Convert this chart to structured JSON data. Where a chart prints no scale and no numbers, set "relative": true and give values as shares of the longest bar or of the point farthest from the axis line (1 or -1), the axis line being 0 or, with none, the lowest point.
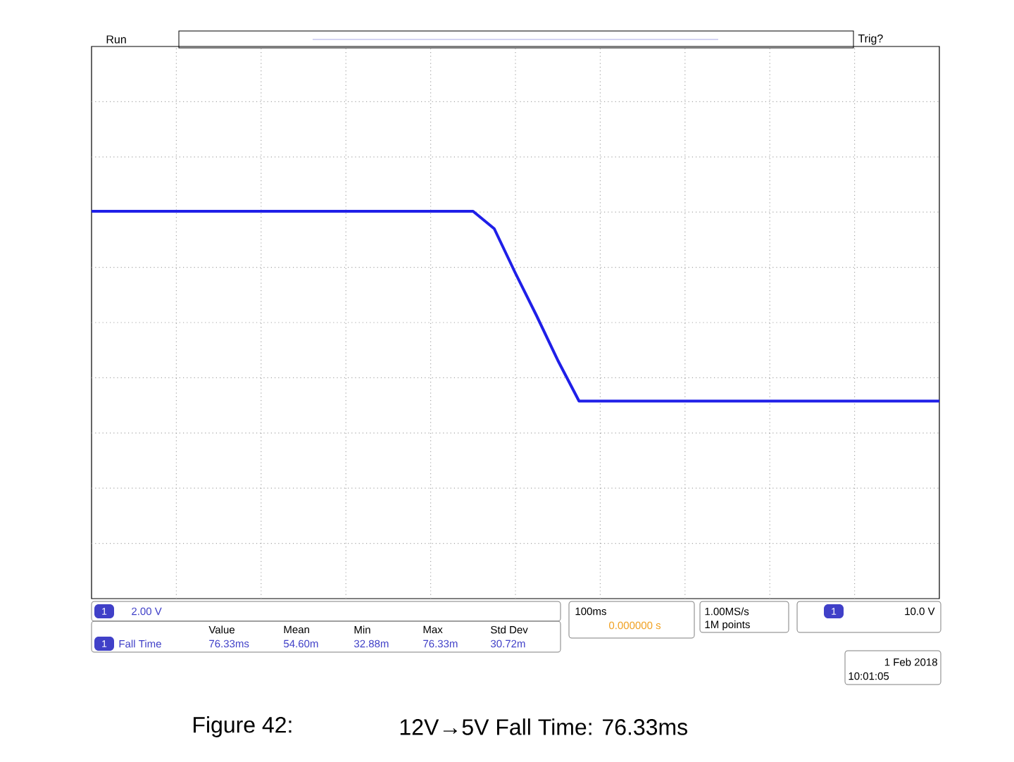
{
  "chart_data": {
    "type": "line",
    "relative": true,
    "grid": true,
    "categories": [
      null,
      null,
      null,
      null,
      null,
      null,
      null,
      null,
      null,
      null,
      null,
      null,
      null,
      null,
      null,
      null,
      null,
      null,
      null,
      null,
      null,
      null,
      null,
      null,
      null,
      null,
      null,
      null,
      null,
      null,
      null,
      null,
      null,
      null,
      null,
      null,
      null,
      null,
      null,
      null,
      null
    ],
    "series": [
      {
        "color": "#1f1fe8",
        "values": [
          1,
          1,
          1,
          1,
          1,
          1,
          1,
          1,
          1,
          1,
          1,
          1,
          1,
          1,
          1,
          1,
          1,
          1,
          1,
          0.955,
          0.84,
          0.73,
          0.615,
          0.51,
          0.51,
          0.51,
          0.51,
          0.51,
          0.51,
          0.51,
          0.51,
          0.51,
          0.51,
          0.51,
          0.51,
          0.51,
          0.51,
          0.51,
          0.51,
          0.51,
          0.51
        ]
      }
    ],
    "annotations": [
      "Run",
      "Trig?",
      "1",
      "2.00 V",
      "1",
      "Fall Time",
      "Value",
      "Mean",
      "Min",
      "Max",
      "Std Dev",
      "76.33ms",
      "54.60m",
      "32.88m",
      "76.33m",
      "30.72m",
      "100ms",
      "0.000000 s",
      "1.00MS/s",
      "1M points",
      "1",
      "10.0 V",
      "1 Feb 2018",
      "10:01:05",
      "Figure 42:",
      "12V→5V Fall Time: 76.33ms"
    ]
  }
}
